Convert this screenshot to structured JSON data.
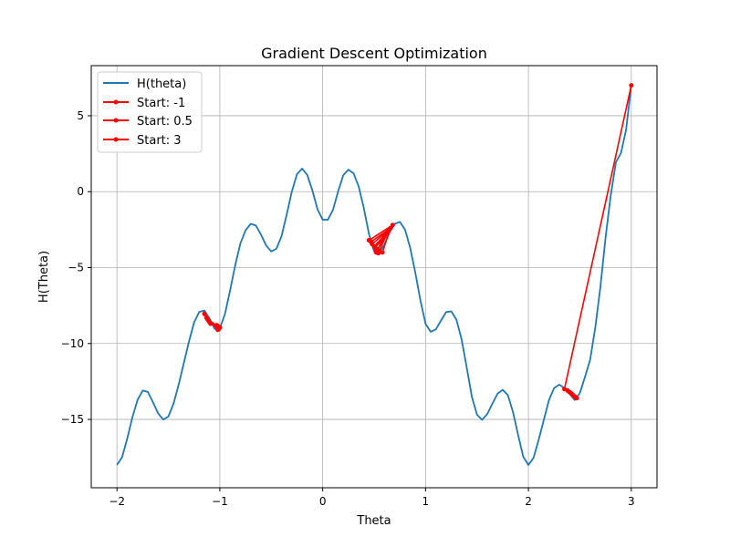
{
  "chart_data": {
    "type": "line",
    "title": "Gradient Descent Optimization",
    "xlabel": "Theta",
    "ylabel": "H(Theta)",
    "xlim": [
      -2.25,
      3.25
    ],
    "ylim": [
      -19.5,
      8.3
    ],
    "xticks": [
      -2,
      -1,
      0,
      1,
      2,
      3
    ],
    "yticks": [
      -15,
      -10,
      -5,
      0,
      5
    ],
    "grid": true,
    "legend_position": "upper-left",
    "colors": {
      "curve": "#1f77b4",
      "path": "#ff0000",
      "grid": "#b0b0b0"
    },
    "series": [
      {
        "name": "H(theta)",
        "kind": "line",
        "x": [
          -2.0,
          -1.95,
          -1.9,
          -1.85,
          -1.8,
          -1.75,
          -1.7,
          -1.65,
          -1.6,
          -1.55,
          -1.5,
          -1.45,
          -1.4,
          -1.35,
          -1.3,
          -1.25,
          -1.2,
          -1.15,
          -1.1,
          -1.05,
          -1.0,
          -0.95,
          -0.9,
          -0.85,
          -0.8,
          -0.75,
          -0.7,
          -0.65,
          -0.6,
          -0.55,
          -0.5,
          -0.45,
          -0.4,
          -0.35,
          -0.3,
          -0.25,
          -0.2,
          -0.15,
          -0.1,
          -0.05,
          0.0,
          0.05,
          0.1,
          0.15,
          0.2,
          0.25,
          0.3,
          0.35,
          0.4,
          0.45,
          0.5,
          0.55,
          0.6,
          0.65,
          0.7,
          0.75,
          0.8,
          0.85,
          0.9,
          0.95,
          1.0,
          1.05,
          1.1,
          1.15,
          1.2,
          1.25,
          1.3,
          1.35,
          1.4,
          1.45,
          1.5,
          1.55,
          1.6,
          1.65,
          1.7,
          1.75,
          1.8,
          1.85,
          1.9,
          1.95,
          2.0,
          2.05,
          2.1,
          2.15,
          2.2,
          2.25,
          2.3,
          2.35,
          2.4,
          2.45,
          2.5,
          2.55,
          2.6,
          2.65,
          2.7,
          2.75,
          2.8,
          2.85,
          2.9,
          2.95,
          3.0
        ],
        "y": [
          -18.0,
          -17.49,
          -16.26,
          -14.86,
          -13.72,
          -13.1,
          -13.19,
          -13.87,
          -14.6,
          -15.01,
          -14.81,
          -13.96,
          -12.71,
          -11.29,
          -9.87,
          -8.61,
          -7.92,
          -7.83,
          -8.36,
          -9.04,
          -9.0,
          -8.06,
          -6.5,
          -4.83,
          -3.41,
          -2.55,
          -2.12,
          -2.23,
          -2.83,
          -3.54,
          -3.94,
          -3.76,
          -2.93,
          -1.51,
          0.01,
          1.15,
          1.52,
          1.1,
          0.08,
          -1.17,
          -1.85,
          -1.85,
          -1.2,
          0.02,
          1.08,
          1.45,
          1.21,
          0.34,
          -1.09,
          -2.79,
          -3.94,
          -4.01,
          -3.48,
          -2.69,
          -2.12,
          -1.99,
          -2.49,
          -3.68,
          -5.32,
          -7.16,
          -8.7,
          -9.23,
          -9.07,
          -8.49,
          -7.93,
          -7.88,
          -8.43,
          -9.72,
          -11.57,
          -13.5,
          -14.69,
          -15.03,
          -14.64,
          -13.96,
          -13.3,
          -13.05,
          -13.4,
          -14.51,
          -16.03,
          -17.46,
          -18.0,
          -17.53,
          -16.33,
          -15.03,
          -13.72,
          -12.93,
          -12.71,
          -12.94,
          -13.32,
          -13.72,
          -13.27,
          -12.2,
          -11.07,
          -8.95,
          -6.27,
          -3.02,
          -0.26,
          1.92,
          2.55,
          4.1,
          7.0
        ]
      },
      {
        "name": "Start: -1",
        "kind": "descent-path",
        "points": [
          [
            -1.15,
            -8.05
          ],
          [
            -1.02,
            -9.1
          ],
          [
            -1.13,
            -8.3
          ],
          [
            -1.01,
            -9.05
          ],
          [
            -1.12,
            -8.4
          ],
          [
            -1.0,
            -8.95
          ],
          [
            -1.11,
            -8.5
          ],
          [
            -1.01,
            -8.9
          ],
          [
            -1.1,
            -8.6
          ],
          [
            -1.02,
            -8.85
          ],
          [
            -1.09,
            -8.7
          ],
          [
            -1.03,
            -8.8
          ]
        ]
      },
      {
        "name": "Start: 0.5",
        "kind": "descent-path",
        "points": [
          [
            0.68,
            -2.2
          ],
          [
            0.45,
            -3.2
          ],
          [
            0.58,
            -4.0
          ],
          [
            0.66,
            -2.4
          ],
          [
            0.47,
            -3.3
          ],
          [
            0.54,
            -4.05
          ],
          [
            0.64,
            -2.55
          ],
          [
            0.48,
            -3.45
          ],
          [
            0.52,
            -4.0
          ],
          [
            0.62,
            -2.75
          ],
          [
            0.5,
            -3.6
          ],
          [
            0.53,
            -3.85
          ],
          [
            0.6,
            -2.95
          ],
          [
            0.51,
            -3.7
          ]
        ]
      },
      {
        "name": "Start: 3",
        "kind": "descent-path",
        "points": [
          [
            3.0,
            7.0
          ],
          [
            2.35,
            -13.0
          ],
          [
            2.47,
            -13.6
          ],
          [
            2.38,
            -13.1
          ],
          [
            2.46,
            -13.55
          ],
          [
            2.4,
            -13.2
          ],
          [
            2.45,
            -13.5
          ],
          [
            2.42,
            -13.3
          ],
          [
            2.44,
            -13.45
          ],
          [
            2.43,
            -13.38
          ]
        ]
      }
    ]
  }
}
